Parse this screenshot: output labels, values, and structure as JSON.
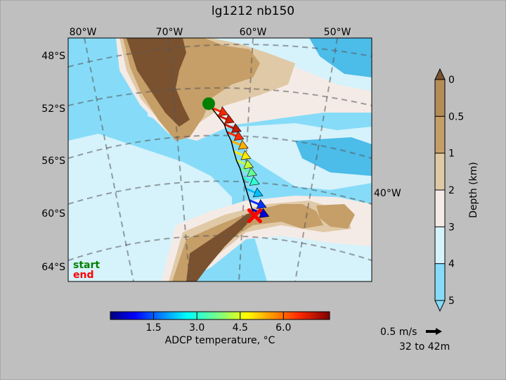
{
  "chart_data": {
    "type": "map",
    "title": "lg1212 nb150",
    "map": {
      "lon_ticks": [
        {
          "lon": -80,
          "label": "80°W"
        },
        {
          "lon": -70,
          "label": "70°W"
        },
        {
          "lon": -60,
          "label": "60°W"
        },
        {
          "lon": -50,
          "label": "50°W"
        }
      ],
      "lat_ticks": [
        {
          "lat": -48,
          "label": "48°S"
        },
        {
          "lat": -52,
          "label": "52°S"
        },
        {
          "lat": -56,
          "label": "56°S"
        },
        {
          "lat": -60,
          "label": "60°S"
        },
        {
          "lat": -64,
          "label": "64°S"
        }
      ],
      "right_label": "40°W",
      "projection_lon_range": [
        -80,
        -50
      ],
      "projection_lat_range": [
        -64,
        -48
      ],
      "graticule": true
    },
    "start": {
      "label": "start",
      "color": "#008000",
      "lon": -66.8,
      "lat": -51.6
    },
    "end": {
      "label": "end",
      "color": "#ff0000",
      "lon": -61.5,
      "lat": -60.3
    },
    "track_vectors": [
      {
        "lon": -66.5,
        "lat": -51.9,
        "temp": 6.6
      },
      {
        "lon": -65.8,
        "lat": -52.5,
        "temp": 6.9
      },
      {
        "lon": -65.0,
        "lat": -53.2,
        "temp": 7.0
      },
      {
        "lon": -64.7,
        "lat": -53.8,
        "temp": 6.5
      },
      {
        "lon": -64.2,
        "lat": -54.5,
        "temp": 5.4
      },
      {
        "lon": -63.9,
        "lat": -55.3,
        "temp": 4.9
      },
      {
        "lon": -63.6,
        "lat": -56.0,
        "temp": 4.3
      },
      {
        "lon": -63.2,
        "lat": -56.6,
        "temp": 3.6
      },
      {
        "lon": -62.9,
        "lat": -57.3,
        "temp": 3.1
      },
      {
        "lon": -62.5,
        "lat": -58.2,
        "temp": 2.2
      },
      {
        "lon": -62.1,
        "lat": -59.1,
        "temp": 1.2
      },
      {
        "lon": -61.8,
        "lat": -59.8,
        "temp": 0.6
      }
    ],
    "colorbar_temp": {
      "label": "ADCP temperature, °C",
      "range": [
        0,
        7.6
      ],
      "ticks": [
        {
          "value": 1.5,
          "label": "1.5"
        },
        {
          "value": 3.0,
          "label": "3.0"
        },
        {
          "value": 4.5,
          "label": "4.5"
        },
        {
          "value": 6.0,
          "label": "6.0"
        }
      ],
      "colormap": "jet"
    },
    "colorbar_depth": {
      "label": "Depth (km)",
      "ticks": [
        "0",
        "0.5",
        "1",
        "2",
        "3",
        "4",
        "5"
      ],
      "colors": [
        "#b48c55",
        "#c59e68",
        "#e0c9a6",
        "#f5ebe6",
        "#d6f2fb",
        "#86dcf8"
      ]
    },
    "vector_key": {
      "speed": "0.5 m/s",
      "depth_range": "32 to 42m"
    }
  }
}
